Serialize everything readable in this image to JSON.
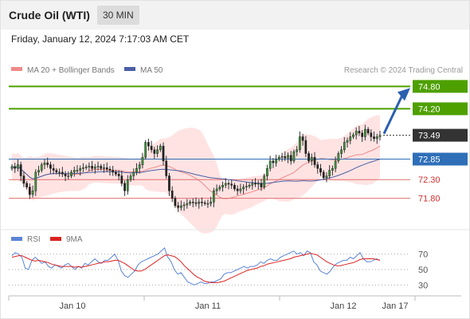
{
  "header": {
    "instrument": "Crude Oil (WTI)",
    "timeframe": "30 MIN",
    "datetime": "Friday, January 12, 2024 7:17:03 AM CET"
  },
  "legend": {
    "bb_label": "MA 20 + Bollinger Bands",
    "ma50_label": "MA 50",
    "source": "Research © 2024 Trading Central"
  },
  "rsi_legend": {
    "rsi_label": "RSI",
    "ma_label": "9MA"
  },
  "colors": {
    "bb_fill": "#ffe3e3",
    "bb_line": "#f08a8a",
    "ma50": "#4a5fa6",
    "resistance": "#4ea000",
    "pivot": "#2f6fb8",
    "support": "#e07070",
    "last_price": "#333333",
    "up": "#2e7d32",
    "down": "#c62828",
    "rsi": "#5b84d6",
    "rsi_ma": "#dd2222"
  },
  "chart_data": {
    "type": "candlestick",
    "ylim": [
      71.0,
      75.0
    ],
    "x_ticks": [
      "Jan 10",
      "Jan 11",
      "Jan 12",
      "Jan 17"
    ],
    "last_price": 73.49,
    "levels": [
      {
        "label": "74.80",
        "value": 74.8,
        "kind": "resistance"
      },
      {
        "label": "74.20",
        "value": 74.2,
        "kind": "resistance"
      },
      {
        "label": "72.85",
        "value": 72.85,
        "kind": "pivot"
      },
      {
        "label": "72.30",
        "value": 72.3,
        "kind": "support"
      },
      {
        "label": "71.80",
        "value": 71.8,
        "kind": "support"
      }
    ],
    "close": [
      72.65,
      72.6,
      72.7,
      72.4,
      72.2,
      72.1,
      71.9,
      72.0,
      72.5,
      72.55,
      72.7,
      72.75,
      72.7,
      72.6,
      72.55,
      72.5,
      72.5,
      72.45,
      72.4,
      72.4,
      72.5,
      72.55,
      72.55,
      72.6,
      72.62,
      72.64,
      72.66,
      72.6,
      72.64,
      72.66,
      72.6,
      72.62,
      72.58,
      72.55,
      72.5,
      72.45,
      72.4,
      72.2,
      72.0,
      72.3,
      72.4,
      72.5,
      72.6,
      72.7,
      72.9,
      73.3,
      73.2,
      73.1,
      73.0,
      73.1,
      73.2,
      72.8,
      72.4,
      72.0,
      71.8,
      71.6,
      71.55,
      71.6,
      71.62,
      71.66,
      71.7,
      71.68,
      71.66,
      71.7,
      71.68,
      71.66,
      71.66,
      71.7,
      72.0,
      72.05,
      72.1,
      72.15,
      72.2,
      72.18,
      72.15,
      72.05,
      72.0,
      72.05,
      72.1,
      72.12,
      72.15,
      72.2,
      72.18,
      72.2,
      72.1,
      72.4,
      72.6,
      72.8,
      72.75,
      72.85,
      72.9,
      72.92,
      72.88,
      72.95,
      72.8,
      73.05,
      73.1,
      73.45,
      73.35,
      73.0,
      72.8,
      72.9,
      72.7,
      72.6,
      72.5,
      72.35,
      72.4,
      72.55,
      72.6,
      72.8,
      73.0,
      73.1,
      73.3,
      73.35,
      73.45,
      73.5,
      73.6,
      73.55,
      73.45,
      73.65,
      73.55,
      73.45,
      73.4,
      73.45,
      73.49
    ],
    "rsi": {
      "ylim": [
        20,
        80
      ],
      "levels": [
        70,
        50,
        30
      ],
      "rsi": [
        68,
        72,
        70,
        66,
        52,
        50,
        62,
        66,
        62,
        58,
        60,
        54,
        52,
        56,
        54,
        52,
        56,
        58,
        54,
        50,
        54,
        52,
        58,
        56,
        60,
        64,
        60,
        58,
        62,
        62,
        66,
        70,
        62,
        48,
        42,
        40,
        44,
        48,
        56,
        60,
        62,
        64,
        66,
        68,
        70,
        74,
        78,
        66,
        60,
        50,
        44,
        46,
        40,
        34,
        32,
        30,
        32,
        34,
        32,
        32,
        34,
        34,
        36,
        38,
        44,
        46,
        46,
        48,
        50,
        52,
        54,
        52,
        54,
        54,
        56,
        60,
        58,
        62,
        64,
        62,
        62,
        66,
        68,
        70,
        72,
        74,
        70,
        72,
        68,
        74,
        72,
        60,
        56,
        48,
        46,
        44,
        48,
        54,
        58,
        60,
        62,
        62,
        66,
        64,
        68,
        72,
        64,
        60,
        60,
        62,
        64,
        62
      ],
      "ma9": [
        66,
        67,
        68,
        68,
        66,
        64,
        62,
        61,
        62,
        61,
        60,
        59,
        57,
        56,
        55,
        54,
        54,
        54,
        54,
        53,
        54,
        53,
        54,
        55,
        56,
        57,
        58,
        59,
        60,
        60,
        61,
        62,
        62,
        60,
        58,
        55,
        52,
        49,
        48,
        48,
        50,
        53,
        56,
        59,
        62,
        65,
        68,
        69,
        68,
        67,
        64,
        60,
        55,
        51,
        47,
        43,
        40,
        38,
        35,
        34,
        33,
        33,
        33,
        34,
        35,
        37,
        39,
        41,
        43,
        45,
        47,
        49,
        50,
        51,
        52,
        54,
        55,
        57,
        58,
        59,
        60,
        61,
        62,
        63,
        64,
        66,
        67,
        68,
        69,
        70,
        71,
        70,
        69,
        66,
        63,
        60,
        58,
        56,
        55,
        55,
        56,
        57,
        58,
        59,
        61,
        63,
        64,
        64,
        64,
        64,
        63,
        62
      ]
    }
  }
}
